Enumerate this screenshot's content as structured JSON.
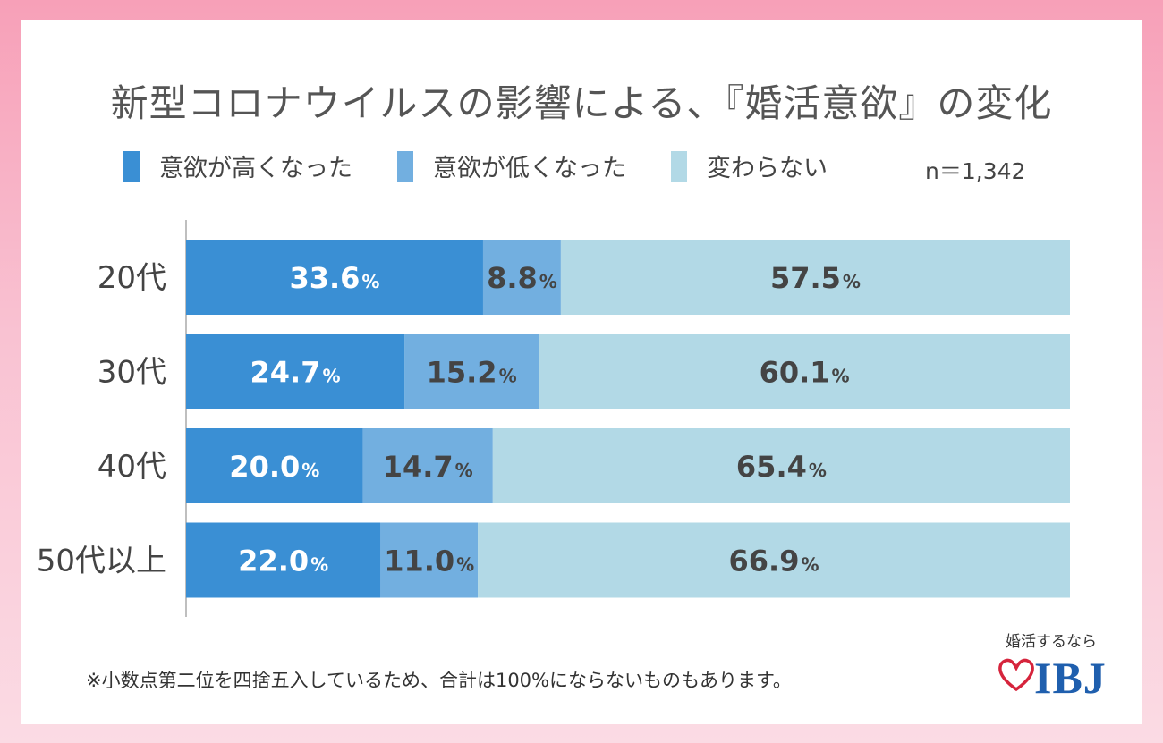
{
  "title": "新型コロナウイルスの影響による、『婚活意欲』の変化",
  "legend": [
    {
      "label": "意欲が高くなった",
      "color": "#3a8fd4"
    },
    {
      "label": "意欲が低くなった",
      "color": "#72afe0"
    },
    {
      "label": "変わらない",
      "color": "#b2d9e6"
    }
  ],
  "sample_size": "n＝1,342",
  "footnote": "※小数点第二位を四捨五入しているため、合計は100%にならないものもあります。",
  "brand": {
    "tagline": "婚活するなら",
    "name": "IBJ",
    "icon": "heart-icon",
    "color": "#1f5fae",
    "heart_color": "#d6243c"
  },
  "chart_data": {
    "type": "bar",
    "orientation": "horizontal",
    "stacked": true,
    "categories": [
      "20代",
      "30代",
      "40代",
      "50代以上"
    ],
    "series": [
      {
        "name": "意欲が高くなった",
        "color": "#3a8fd4",
        "values": [
          33.6,
          24.7,
          20.0,
          22.0
        ]
      },
      {
        "name": "意欲が低くなった",
        "color": "#72afe0",
        "values": [
          8.8,
          15.2,
          14.7,
          11.0
        ]
      },
      {
        "name": "変わらない",
        "color": "#b2d9e6",
        "values": [
          57.5,
          60.1,
          65.4,
          66.9
        ]
      }
    ],
    "value_suffix": "%",
    "xlim": [
      0,
      100
    ],
    "grid": false,
    "legend_position": "top"
  }
}
